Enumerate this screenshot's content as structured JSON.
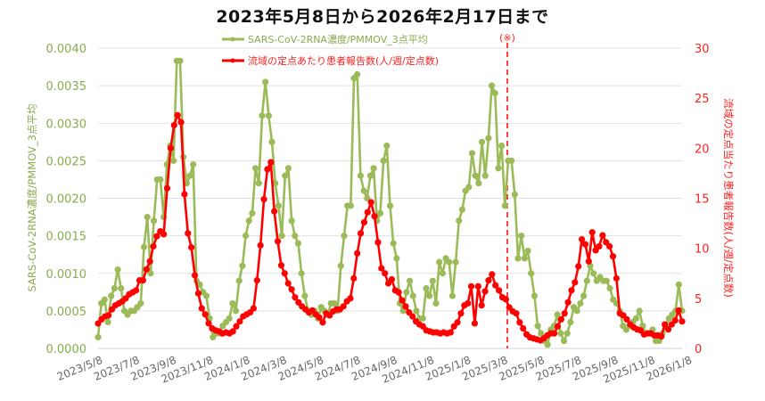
{
  "chart_data": {
    "type": "line",
    "title": "2023年5月8日から2026年2月17日まで",
    "xlabel": "",
    "ylabel_left": "SARS-CoV-2RNA濃度/PMMOV_3点平均",
    "ylabel_right": "流域の定点当たり患者報告数(人/週/定点数)",
    "ylim_left": [
      0,
      0.004
    ],
    "ylim_right": [
      0,
      30
    ],
    "yticks_left": [
      "0.0000",
      "0.0005",
      "0.0010",
      "0.0015",
      "0.0020",
      "0.0025",
      "0.0030",
      "0.0035",
      "0.0040"
    ],
    "yticks_right": [
      "0",
      "5",
      "10",
      "15",
      "20",
      "25",
      "30"
    ],
    "xtick_labels": [
      "2023/5/8",
      "2023/7/8",
      "2023/9/8",
      "2023/11/8",
      "2024/1/8",
      "2024/3/8",
      "2024/5/8",
      "2024/7/8",
      "2024/9/8",
      "2024/11/8",
      "2025/1/8",
      "2025/3/8",
      "2025/5/8",
      "2025/7/8",
      "2025/9/8",
      "2025/11/8",
      "2026/1/8"
    ],
    "grid": true,
    "legend_position": "top-center",
    "annotation": {
      "label": "(※)",
      "x_date": "2025/4/28",
      "style": "red dashed vertical line"
    },
    "series": [
      {
        "name": "SARS-CoV-2RNA濃度/PMMOV_3点平均",
        "axis": "left",
        "color": "#9bbb59",
        "values": [
          0.00015,
          0.0006,
          0.00065,
          0.00035,
          0.0007,
          0.0008,
          0.00105,
          0.0008,
          0.0005,
          0.00045,
          0.0005,
          0.0005,
          0.00055,
          0.0006,
          0.00135,
          0.00175,
          0.001,
          0.0017,
          0.00225,
          0.00225,
          0.00175,
          0.00245,
          0.0027,
          0.0025,
          0.00383,
          0.00383,
          0.00255,
          0.0022,
          0.0023,
          0.00245,
          0.0009,
          0.00085,
          0.00075,
          0.0007,
          0.0004,
          0.00015,
          0.0002,
          0.0002,
          0.0003,
          0.00035,
          0.0004,
          0.0006,
          0.0005,
          0.0009,
          0.0011,
          0.0015,
          0.0017,
          0.0018,
          0.0024,
          0.0022,
          0.0031,
          0.00355,
          0.0031,
          0.00275,
          0.0022,
          0.0019,
          0.0015,
          0.0023,
          0.0024,
          0.0017,
          0.0015,
          0.0014,
          0.001,
          0.0007,
          0.0005,
          0.00045,
          0.0005,
          0.0004,
          0.00055,
          0.0005,
          0.00045,
          0.0006,
          0.0006,
          0.0005,
          0.0011,
          0.0015,
          0.0019,
          0.0019,
          0.0036,
          0.00365,
          0.0023,
          0.0021,
          0.002,
          0.0023,
          0.0024,
          0.0017,
          0.0018,
          0.0025,
          0.0027,
          0.0019,
          0.0014,
          0.0012,
          0.0006,
          0.0005,
          0.00075,
          0.0009,
          0.0007,
          0.0005,
          0.0004,
          0.0004,
          0.0008,
          0.0007,
          0.0009,
          0.0006,
          0.00115,
          0.001,
          0.0012,
          0.00115,
          0.0007,
          0.00115,
          0.0017,
          0.00185,
          0.0021,
          0.00215,
          0.0026,
          0.0023,
          0.0022,
          0.00275,
          0.0023,
          0.0028,
          0.0035,
          0.0034,
          0.0024,
          0.0027,
          0.0019,
          0.0025,
          0.0025,
          0.00205,
          0.0012,
          0.0015,
          0.0012,
          0.0013,
          0.001,
          0.0007,
          0.0003,
          0.0002,
          0.0001,
          5e-05,
          0.00025,
          0.0003,
          0.00045,
          0.0002,
          0.0001,
          0.0002,
          0.00035,
          0.00055,
          0.0005,
          0.0006,
          0.0007,
          0.0009,
          0.0011,
          0.001,
          0.0009,
          0.00095,
          0.0009,
          0.0009,
          0.0008,
          0.00065,
          0.0006,
          0.0005,
          0.0003,
          0.00025,
          0.0003,
          0.00035,
          0.0004,
          0.0005,
          0.0003,
          0.0002,
          0.0002,
          0.00025,
          0.0001,
          0.0001,
          0.0002,
          0.0003,
          0.0004,
          0.00045,
          0.0005,
          0.00085,
          0.0005
        ]
      },
      {
        "name": "流域の定点あたり患者報告数(人/週/定点数)",
        "axis": "right",
        "color": "#ff0000",
        "values": [
          2.5,
          2.9,
          3.2,
          3.3,
          3.9,
          4.3,
          4.5,
          4.7,
          5.0,
          5.4,
          5.6,
          5.8,
          6.8,
          6.8,
          7.9,
          8.7,
          10.2,
          11.2,
          11.7,
          11.4,
          16.0,
          20.0,
          22.3,
          23.3,
          22.6,
          15.4,
          11.5,
          10.1,
          7.3,
          5.5,
          4.0,
          3.4,
          2.5,
          2.0,
          1.8,
          1.7,
          1.5,
          1.6,
          1.5,
          1.7,
          2.2,
          2.7,
          3.2,
          3.4,
          3.6,
          4.0,
          6.8,
          10.3,
          14.9,
          17.9,
          18.6,
          13.7,
          10.7,
          8.3,
          7.5,
          6.5,
          5.9,
          5.1,
          4.6,
          4.2,
          3.9,
          3.6,
          3.8,
          3.4,
          3.1,
          2.6,
          3.5,
          3.3,
          3.7,
          3.9,
          3.9,
          4.2,
          4.7,
          5.0,
          7.0,
          9.5,
          11.5,
          12.6,
          13.6,
          14.6,
          13.2,
          10.6,
          8.0,
          7.5,
          6.5,
          6.9,
          5.8,
          5.6,
          4.8,
          4.2,
          3.6,
          3.2,
          2.7,
          2.4,
          2.2,
          1.8,
          1.7,
          1.6,
          1.6,
          1.5,
          1.6,
          1.5,
          1.6,
          2.2,
          2.6,
          3.5,
          4.3,
          4.5,
          6.2,
          2.5,
          6.2,
          4.3,
          5.7,
          6.8,
          7.4,
          6.3,
          5.8,
          5.1,
          4.9,
          4.1,
          3.7,
          3.5,
          2.6,
          2.0,
          1.4,
          1.1,
          1.0,
          0.9,
          0.8,
          1.0,
          1.3,
          1.5,
          1.5,
          2.2,
          2.9,
          3.5,
          4.6,
          5.8,
          6.6,
          8.2,
          10.9,
          10.4,
          8.7,
          11.6,
          9.8,
          10.2,
          11.3,
          10.6,
          10.2,
          9.2,
          7.0,
          3.5,
          3.3,
          2.9,
          2.4,
          2.1,
          1.9,
          1.8,
          1.4,
          1.5,
          1.5,
          1.3,
          1.3,
          1.2,
          2.4,
          1.9,
          2.4,
          2.8,
          3.8,
          2.7
        ]
      }
    ]
  },
  "legend": {
    "items": [
      {
        "label": "SARS-CoV-2RNA濃度/PMMOV_3点平均",
        "color": "#9bbb59"
      },
      {
        "label": "流域の定点あたり患者報告数(人/週/定点数)",
        "color": "#ff0000"
      }
    ]
  },
  "annotation_label": "(※)"
}
